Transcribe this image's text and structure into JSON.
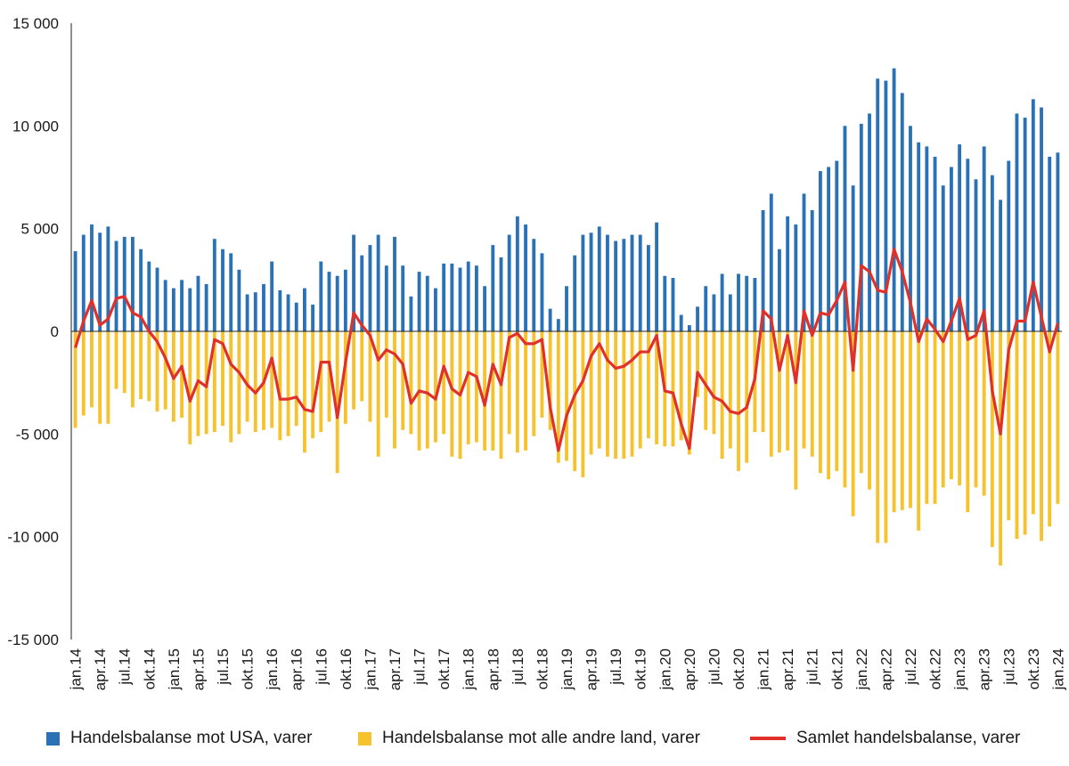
{
  "chart_data": {
    "type": "bar+line",
    "title": "",
    "xlabel": "",
    "ylabel": "",
    "ylim": [
      -15000,
      15000
    ],
    "yticks": [
      15000,
      10000,
      5000,
      0,
      -5000,
      -10000,
      -15000
    ],
    "ytick_labels": [
      "15 000",
      "10 000",
      "5 000",
      "0",
      "-5 000",
      "-10 000",
      "-15 000"
    ],
    "xtick_labels": [
      "jan.14",
      "apr.14",
      "jul.14",
      "okt.14",
      "jan.15",
      "apr.15",
      "jul.15",
      "okt.15",
      "jan.16",
      "apr.16",
      "jul.16",
      "okt.16",
      "jan.17",
      "apr.17",
      "jul.17",
      "okt.17",
      "jan.18",
      "apr.18",
      "jul.18",
      "okt.18",
      "jan.19",
      "apr.19",
      "jul.19",
      "okt.19",
      "jan.20",
      "apr.20",
      "jul.20",
      "okt.20",
      "jan.21",
      "apr.21",
      "jul.21",
      "okt.21",
      "jan.22",
      "apr.22",
      "jul.22",
      "okt.22",
      "jan.23",
      "apr.23",
      "jul.23",
      "okt.23",
      "jan.24"
    ],
    "start": "2014-01",
    "colors": {
      "usa": "#2a72b5",
      "other": "#f6c22d",
      "total": "#e0302a",
      "axis": "#222222"
    },
    "series": [
      {
        "name": "Handelsbalanse mot USA, varer",
        "kind": "bar",
        "values": [
          3900,
          4700,
          5200,
          4800,
          5100,
          4400,
          4600,
          4600,
          4000,
          3400,
          3100,
          2500,
          2100,
          2500,
          2100,
          2700,
          2300,
          4500,
          4000,
          3800,
          3000,
          1800,
          1900,
          2300,
          3400,
          2000,
          1800,
          1400,
          2100,
          1300,
          3400,
          2900,
          2700,
          3000,
          4700,
          3700,
          4200,
          4700,
          3200,
          4600,
          3200,
          1700,
          2900,
          2700,
          2100,
          3300,
          3300,
          3100,
          3400,
          3200,
          2200,
          4200,
          3600,
          4700,
          5600,
          5200,
          4500,
          3800,
          1100,
          600,
          2200,
          3700,
          4700,
          4800,
          5100,
          4700,
          4400,
          4500,
          4700,
          4700,
          4200,
          5300,
          2700,
          2600,
          800,
          300,
          1200,
          2200,
          1800,
          2800,
          1800,
          2800,
          2700,
          2600,
          5900,
          6700,
          4000,
          5600,
          5200,
          6700,
          5900,
          7800,
          8000,
          8300,
          10000,
          7100,
          10100,
          10600,
          12300,
          12200,
          12800,
          11600,
          10000,
          9200,
          9000,
          8500,
          7100,
          8000,
          9100,
          8400,
          7400,
          9000,
          7600,
          6400,
          8300,
          10600,
          10400,
          11300,
          10900,
          8500,
          8700
        ]
      },
      {
        "name": "Handelsbalanse mot alle andre land, varer",
        "kind": "bar",
        "values": [
          -4700,
          -4100,
          -3700,
          -4500,
          -4500,
          -2800,
          -3000,
          -3700,
          -3300,
          -3400,
          -3900,
          -3800,
          -4400,
          -4200,
          -5500,
          -5100,
          -5000,
          -4900,
          -4600,
          -5400,
          -5000,
          -4400,
          -4900,
          -4800,
          -4700,
          -5300,
          -5100,
          -4600,
          -5900,
          -5200,
          -4900,
          -4400,
          -6900,
          -4500,
          -3800,
          -3400,
          -4400,
          -6100,
          -4200,
          -5700,
          -4800,
          -5000,
          -5800,
          -5700,
          -5400,
          -5000,
          -6100,
          -6200,
          -5500,
          -5400,
          -5800,
          -5800,
          -6200,
          -5000,
          -5900,
          -5800,
          -5100,
          -4200,
          -4800,
          -6400,
          -6300,
          -6800,
          -7100,
          -6000,
          -5700,
          -6100,
          -6200,
          -6200,
          -6100,
          -5700,
          -5200,
          -5500,
          -5600,
          -5600,
          -5300,
          -6000,
          -3200,
          -4800,
          -5000,
          -6200,
          -5700,
          -6800,
          -6400,
          -4900,
          -4900,
          -6100,
          -5900,
          -5800,
          -7700,
          -5700,
          -6100,
          -6900,
          -7200,
          -6800,
          -7600,
          -9000,
          -6900,
          -7700,
          -10300,
          -10300,
          -8800,
          -8700,
          -8600,
          -9700,
          -8400,
          -8400,
          -7600,
          -7200,
          -7500,
          -8800,
          -7600,
          -8000,
          -10500,
          -11400,
          -9200,
          -10100,
          -9900,
          -8900,
          -10200,
          -9500,
          -8400
        ]
      },
      {
        "name": "Samlet handelsbalanse, varer",
        "kind": "line",
        "values": [
          -800,
          500,
          1500,
          300,
          600,
          1600,
          1700,
          900,
          700,
          0,
          -500,
          -1300,
          -2300,
          -1700,
          -3400,
          -2400,
          -2700,
          -400,
          -600,
          -1600,
          -2000,
          -2600,
          -3000,
          -2500,
          -1300,
          -3300,
          -3300,
          -3200,
          -3800,
          -3900,
          -1500,
          -1500,
          -4200,
          -1500,
          900,
          300,
          -200,
          -1400,
          -900,
          -1100,
          -1600,
          -3500,
          -2900,
          -3000,
          -3300,
          -1700,
          -2800,
          -3100,
          -2000,
          -2200,
          -3600,
          -1600,
          -2600,
          -300,
          -100,
          -600,
          -600,
          -400,
          -3700,
          -5800,
          -4100,
          -3100,
          -2400,
          -1200,
          -600,
          -1400,
          -1800,
          -1700,
          -1400,
          -1000,
          -1000,
          -200,
          -2900,
          -3000,
          -4500,
          -5700,
          -2000,
          -2600,
          -3200,
          -3400,
          -3900,
          -4000,
          -3700,
          -2300,
          1000,
          600,
          -1900,
          -200,
          -2500,
          1000,
          -200,
          900,
          800,
          1500,
          2400,
          -1900,
          3200,
          2900,
          2000,
          1900,
          4000,
          2900,
          1400,
          -500,
          600,
          100,
          -500,
          500,
          1600,
          -400,
          -200,
          1000,
          -2900,
          -5000,
          -900,
          500,
          500,
          2400,
          700,
          -1000,
          400
        ]
      }
    ],
    "legend": [
      {
        "label": "Handelsbalanse mot USA, varer",
        "marker": "square",
        "color": "#2a72b5"
      },
      {
        "label": "Handelsbalanse mot alle andre land, varer",
        "marker": "square",
        "color": "#f6c22d"
      },
      {
        "label": "Samlet handelsbalanse, varer",
        "marker": "line",
        "color": "#e0302a"
      }
    ],
    "legend_position": "bottom"
  }
}
